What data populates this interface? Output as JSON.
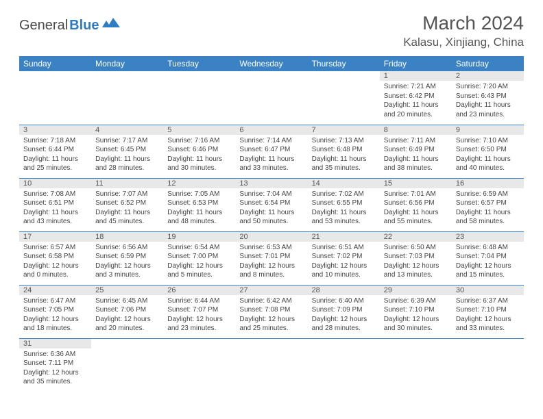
{
  "logo": {
    "text1": "General",
    "text2": "Blue"
  },
  "title": "March 2024",
  "location": "Kalasu, Xinjiang, China",
  "colors": {
    "header_bg": "#3a82c4",
    "header_text": "#ffffff",
    "daynum_bg": "#e8e8e8",
    "cell_border": "#3a82c4",
    "body_text": "#444444",
    "title_text": "#555555"
  },
  "day_headers": [
    "Sunday",
    "Monday",
    "Tuesday",
    "Wednesday",
    "Thursday",
    "Friday",
    "Saturday"
  ],
  "weeks": [
    [
      null,
      null,
      null,
      null,
      null,
      {
        "n": "1",
        "sr": "7:21 AM",
        "ss": "6:42 PM",
        "dl": "11 hours and 20 minutes."
      },
      {
        "n": "2",
        "sr": "7:20 AM",
        "ss": "6:43 PM",
        "dl": "11 hours and 23 minutes."
      }
    ],
    [
      {
        "n": "3",
        "sr": "7:18 AM",
        "ss": "6:44 PM",
        "dl": "11 hours and 25 minutes."
      },
      {
        "n": "4",
        "sr": "7:17 AM",
        "ss": "6:45 PM",
        "dl": "11 hours and 28 minutes."
      },
      {
        "n": "5",
        "sr": "7:16 AM",
        "ss": "6:46 PM",
        "dl": "11 hours and 30 minutes."
      },
      {
        "n": "6",
        "sr": "7:14 AM",
        "ss": "6:47 PM",
        "dl": "11 hours and 33 minutes."
      },
      {
        "n": "7",
        "sr": "7:13 AM",
        "ss": "6:48 PM",
        "dl": "11 hours and 35 minutes."
      },
      {
        "n": "8",
        "sr": "7:11 AM",
        "ss": "6:49 PM",
        "dl": "11 hours and 38 minutes."
      },
      {
        "n": "9",
        "sr": "7:10 AM",
        "ss": "6:50 PM",
        "dl": "11 hours and 40 minutes."
      }
    ],
    [
      {
        "n": "10",
        "sr": "7:08 AM",
        "ss": "6:51 PM",
        "dl": "11 hours and 43 minutes."
      },
      {
        "n": "11",
        "sr": "7:07 AM",
        "ss": "6:52 PM",
        "dl": "11 hours and 45 minutes."
      },
      {
        "n": "12",
        "sr": "7:05 AM",
        "ss": "6:53 PM",
        "dl": "11 hours and 48 minutes."
      },
      {
        "n": "13",
        "sr": "7:04 AM",
        "ss": "6:54 PM",
        "dl": "11 hours and 50 minutes."
      },
      {
        "n": "14",
        "sr": "7:02 AM",
        "ss": "6:55 PM",
        "dl": "11 hours and 53 minutes."
      },
      {
        "n": "15",
        "sr": "7:01 AM",
        "ss": "6:56 PM",
        "dl": "11 hours and 55 minutes."
      },
      {
        "n": "16",
        "sr": "6:59 AM",
        "ss": "6:57 PM",
        "dl": "11 hours and 58 minutes."
      }
    ],
    [
      {
        "n": "17",
        "sr": "6:57 AM",
        "ss": "6:58 PM",
        "dl": "12 hours and 0 minutes."
      },
      {
        "n": "18",
        "sr": "6:56 AM",
        "ss": "6:59 PM",
        "dl": "12 hours and 3 minutes."
      },
      {
        "n": "19",
        "sr": "6:54 AM",
        "ss": "7:00 PM",
        "dl": "12 hours and 5 minutes."
      },
      {
        "n": "20",
        "sr": "6:53 AM",
        "ss": "7:01 PM",
        "dl": "12 hours and 8 minutes."
      },
      {
        "n": "21",
        "sr": "6:51 AM",
        "ss": "7:02 PM",
        "dl": "12 hours and 10 minutes."
      },
      {
        "n": "22",
        "sr": "6:50 AM",
        "ss": "7:03 PM",
        "dl": "12 hours and 13 minutes."
      },
      {
        "n": "23",
        "sr": "6:48 AM",
        "ss": "7:04 PM",
        "dl": "12 hours and 15 minutes."
      }
    ],
    [
      {
        "n": "24",
        "sr": "6:47 AM",
        "ss": "7:05 PM",
        "dl": "12 hours and 18 minutes."
      },
      {
        "n": "25",
        "sr": "6:45 AM",
        "ss": "7:06 PM",
        "dl": "12 hours and 20 minutes."
      },
      {
        "n": "26",
        "sr": "6:44 AM",
        "ss": "7:07 PM",
        "dl": "12 hours and 23 minutes."
      },
      {
        "n": "27",
        "sr": "6:42 AM",
        "ss": "7:08 PM",
        "dl": "12 hours and 25 minutes."
      },
      {
        "n": "28",
        "sr": "6:40 AM",
        "ss": "7:09 PM",
        "dl": "12 hours and 28 minutes."
      },
      {
        "n": "29",
        "sr": "6:39 AM",
        "ss": "7:10 PM",
        "dl": "12 hours and 30 minutes."
      },
      {
        "n": "30",
        "sr": "6:37 AM",
        "ss": "7:10 PM",
        "dl": "12 hours and 33 minutes."
      }
    ],
    [
      {
        "n": "31",
        "sr": "6:36 AM",
        "ss": "7:11 PM",
        "dl": "12 hours and 35 minutes."
      },
      null,
      null,
      null,
      null,
      null,
      null
    ]
  ],
  "labels": {
    "sunrise": "Sunrise:",
    "sunset": "Sunset:",
    "daylight": "Daylight:"
  }
}
